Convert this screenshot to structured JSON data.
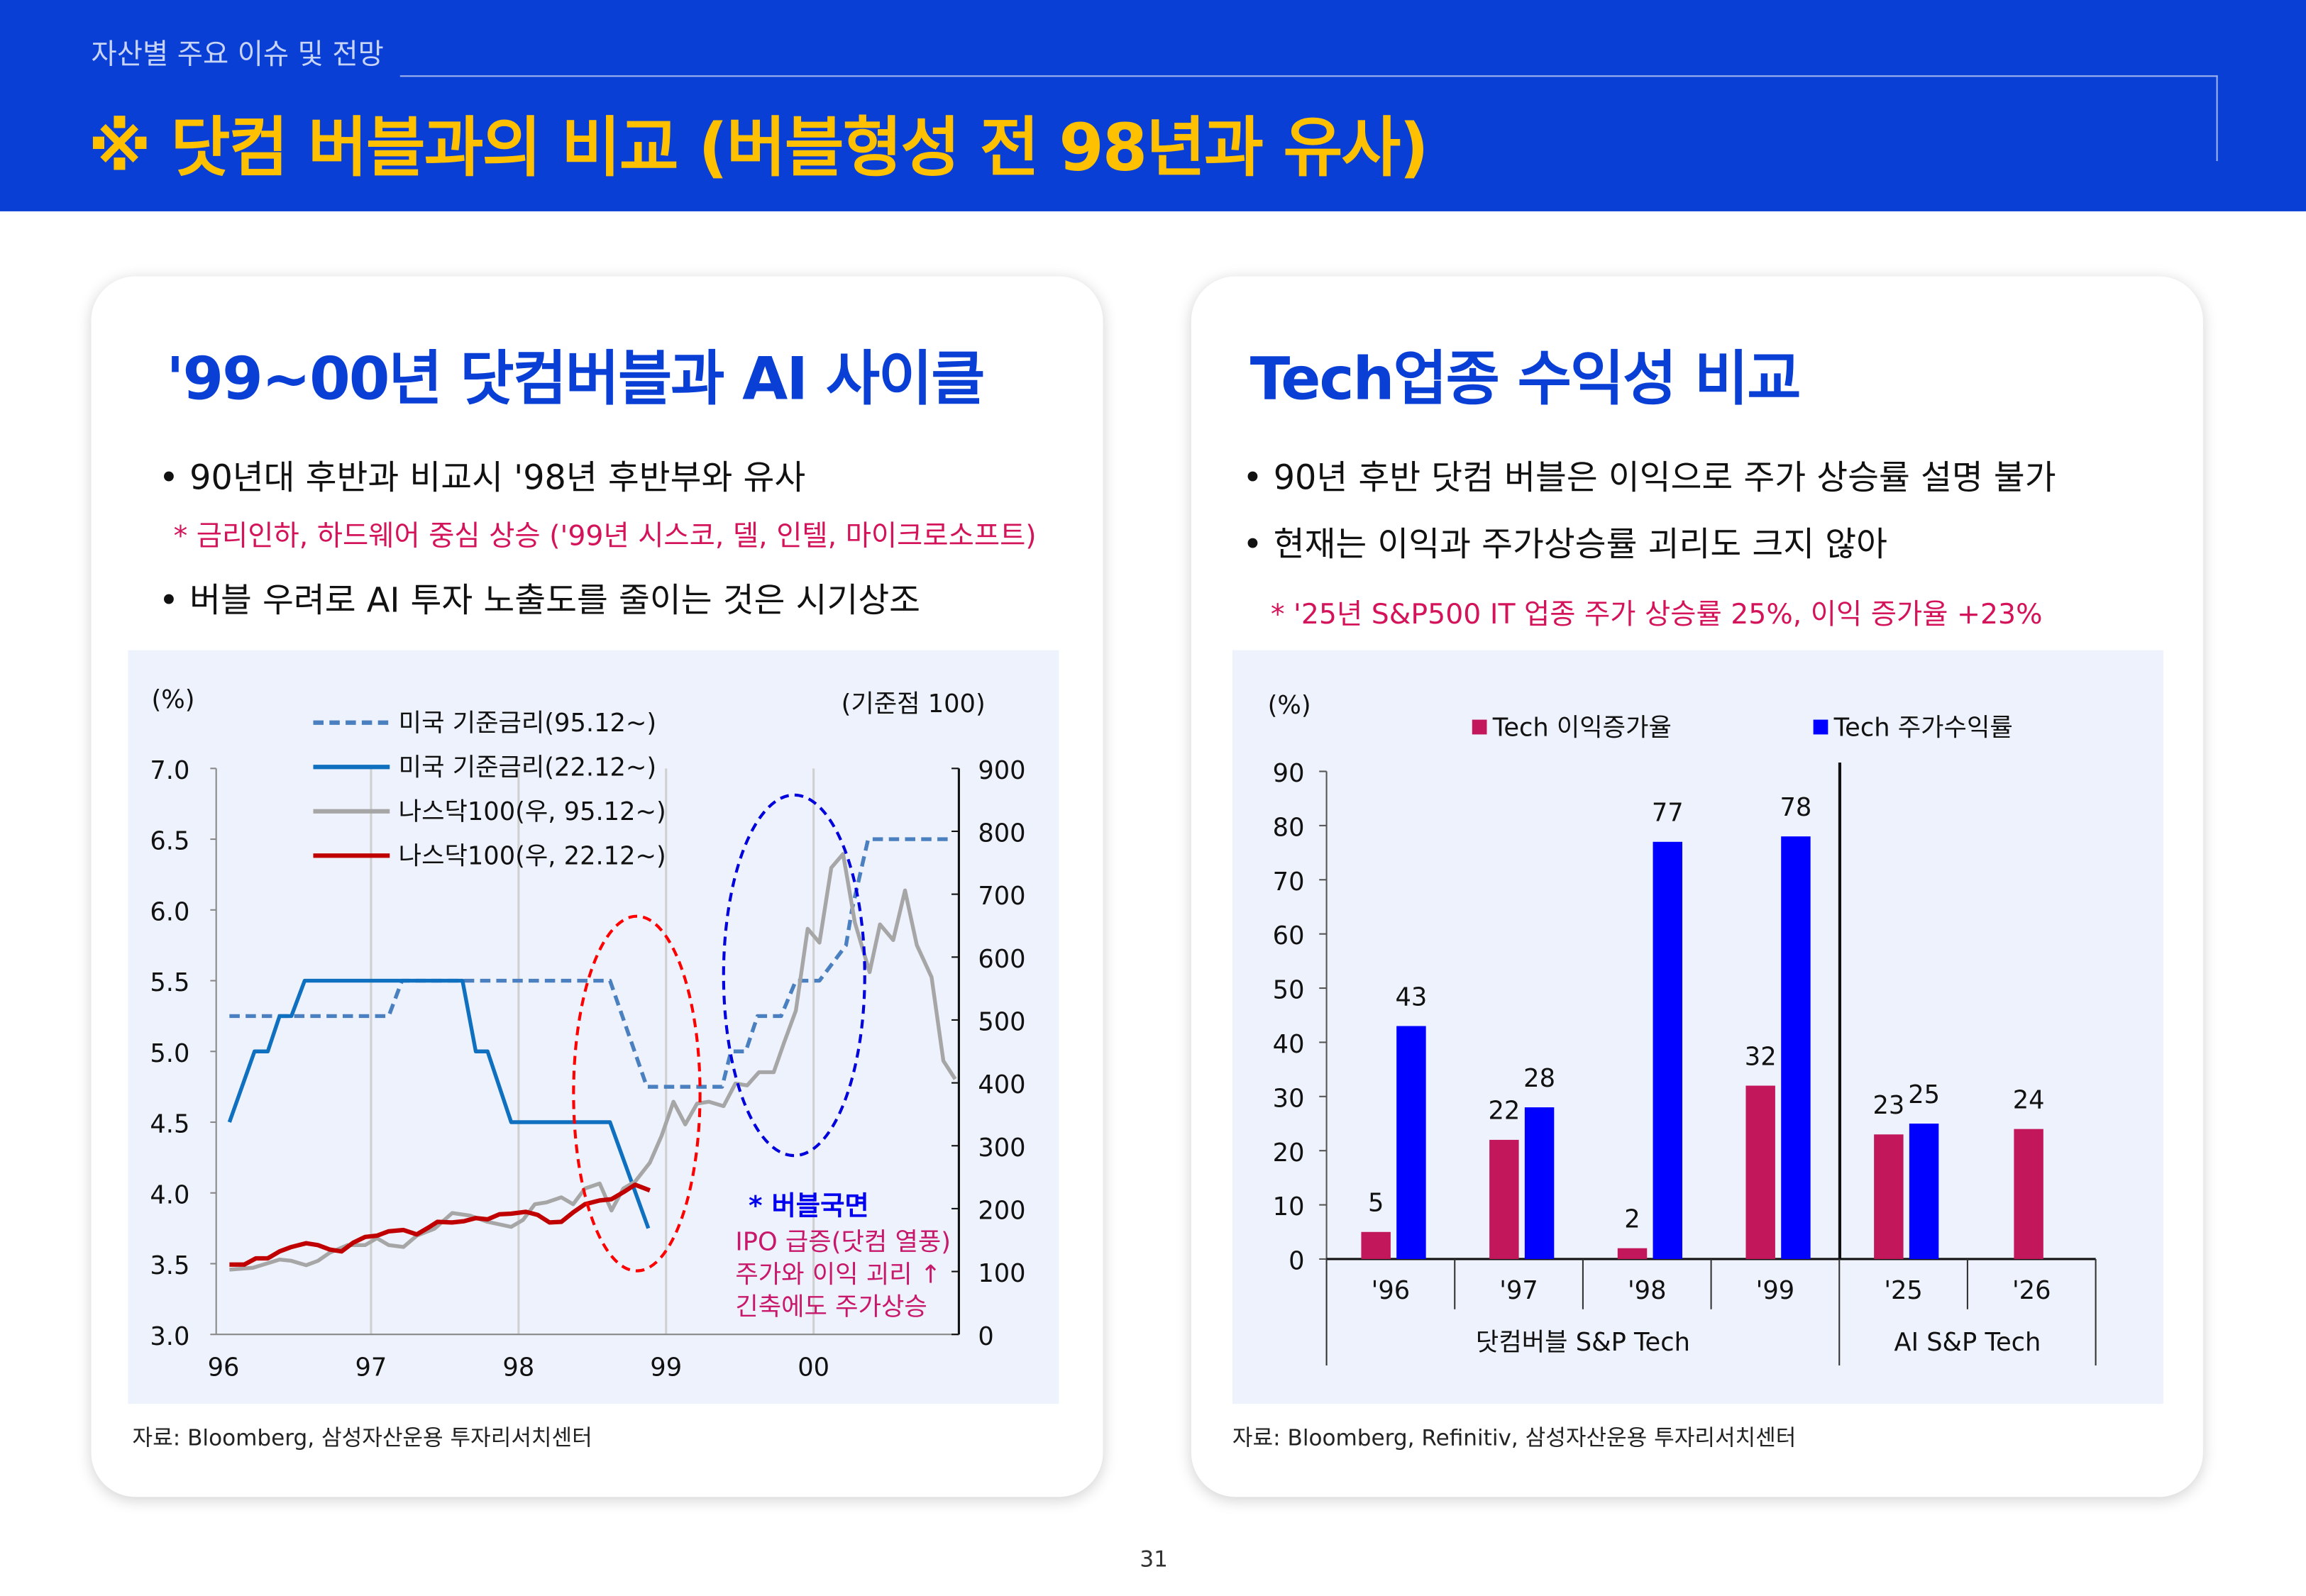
{
  "header": {
    "section": "자산별 주요 이슈 및 전망",
    "title": "※ 닷컴 버블과의 비교 (버블형성 전 98년과 유사)"
  },
  "left": {
    "title": "'99~00년 닷컴버블과 AI 사이클",
    "bullets": [
      "• 90년대 후반과 비교시 '98년 후반부와 유사",
      "• 버블 우려로 AI 투자 노출도를 줄이는 것은 시기상조"
    ],
    "note": "* 금리인하, 하드웨어 중심 상승 ('99년 시스코, 델, 인텔, 마이크로소프트)",
    "source": "자료: Bloomberg, 삼성자산운용 투자리서치센터"
  },
  "right": {
    "title": "Tech업종 수익성 비교",
    "bullets": [
      "• 90년 후반 닷컴 버블은 이익으로 주가 상승률 설명 불가",
      "• 현재는 이익과 주가상승률 괴리도 크지 않아"
    ],
    "note": "* '25년 S&P500  IT 업종 주가 상승률 25%, 이익 증가율 +23%",
    "source": "자료: Bloomberg, Refinitiv, 삼성자산운용 투자리서치센터"
  },
  "page_number": "31",
  "chart_data": [
    {
      "type": "line",
      "ylabel_left": "(%)",
      "ylabel_right": "(기준점 100)",
      "ylim_left": [
        3.0,
        7.0
      ],
      "yticks_left": [
        "3.0",
        "3.5",
        "4.0",
        "4.5",
        "5.0",
        "5.5",
        "6.0",
        "6.5",
        "7.0"
      ],
      "ylim_right": [
        0,
        900
      ],
      "yticks_right": [
        "0",
        "100",
        "200",
        "300",
        "400",
        "500",
        "600",
        "700",
        "800",
        "900"
      ],
      "xticks": [
        "96",
        "97",
        "98",
        "99",
        "00"
      ],
      "xlim": [
        1996,
        2001
      ],
      "grid": "vertical",
      "legend_placement": "top-left",
      "series": [
        {
          "name": "미국 기준금리(95.12~)",
          "axis": "left",
          "style": "dashed",
          "color": "#4a7fc0",
          "x": [
            1996.04,
            1997.12,
            1997.21,
            1998.62,
            1998.87,
            1999.38,
            1999.44,
            1999.54,
            1999.62,
            1999.78,
            1999.88,
            2000.04,
            2000.22,
            2000.26,
            2000.37,
            2000.92
          ],
          "y": [
            5.25,
            5.25,
            5.5,
            5.5,
            4.75,
            4.75,
            5.0,
            5.0,
            5.25,
            5.25,
            5.5,
            5.5,
            5.75,
            6.0,
            6.5,
            6.5
          ]
        },
        {
          "name": "미국 기준금리(22.12~)",
          "axis": "left",
          "style": "solid",
          "color": "#1070c0",
          "x": [
            1996.04,
            1996.21,
            1996.3,
            1996.38,
            1996.46,
            1996.55,
            1997.62,
            1997.71,
            1997.79,
            1997.95,
            1998.62,
            1998.88
          ],
          "y": [
            4.5,
            5.0,
            5.0,
            5.25,
            5.25,
            5.5,
            5.5,
            5.0,
            5.0,
            4.5,
            4.5,
            3.75
          ]
        },
        {
          "name": "나스닥100(우, 95.12~)",
          "axis": "right",
          "style": "solid",
          "color": "#a6a6a6",
          "x": [
            1996.04,
            1996.2,
            1996.38,
            1996.46,
            1996.56,
            1996.64,
            1996.72,
            1996.84,
            1996.96,
            1997.04,
            1997.12,
            1997.22,
            1997.31,
            1997.43,
            1997.55,
            1997.67,
            1997.79,
            1997.95,
            1998.03,
            1998.11,
            1998.19,
            1998.29,
            1998.37,
            1998.45,
            1998.55,
            1998.63,
            1998.71,
            1998.79,
            1998.89,
            1998.97,
            1999.05,
            1999.13,
            1999.21,
            1999.29,
            1999.39,
            1999.47,
            1999.55,
            1999.63,
            1999.73,
            1999.8,
            1999.88,
            1999.96,
            2000.04,
            2000.12,
            2000.2,
            2000.28,
            2000.38,
            2000.45,
            2000.54,
            2000.62,
            2000.7,
            2000.8,
            2000.88,
            2000.96
          ],
          "y": [
            103,
            106,
            119,
            117,
            110,
            117,
            130,
            142,
            142,
            153,
            142,
            139,
            157,
            168,
            193,
            189,
            179,
            171,
            182,
            207,
            210,
            218,
            207,
            232,
            240,
            197,
            232,
            243,
            273,
            316,
            370,
            334,
            367,
            370,
            363,
            399,
            396,
            417,
            417,
            464,
            515,
            645,
            623,
            742,
            764,
            655,
            576,
            652,
            627,
            706,
            619,
            568,
            435,
            406
          ]
        },
        {
          "name": "나스닥100(우, 22.12~)",
          "axis": "right",
          "style": "solid",
          "color": "#c00000",
          "x": [
            1996.04,
            1996.14,
            1996.22,
            1996.3,
            1996.38,
            1996.46,
            1996.56,
            1996.64,
            1996.72,
            1996.8,
            1996.88,
            1996.96,
            1997.04,
            1997.12,
            1997.22,
            1997.31,
            1997.39,
            1997.45,
            1997.55,
            1997.63,
            1997.71,
            1997.79,
            1997.87,
            1997.95,
            1998.05,
            1998.13,
            1998.21,
            1998.29,
            1998.37,
            1998.45,
            1998.55,
            1998.63,
            1998.71,
            1998.79,
            1998.89
          ],
          "y": [
            111,
            111,
            121,
            121,
            132,
            139,
            145,
            142,
            135,
            132,
            146,
            155,
            157,
            164,
            166,
            159,
            170,
            179,
            178,
            180,
            185,
            183,
            191,
            192,
            195,
            190,
            178,
            179,
            194,
            207,
            213,
            215,
            226,
            238,
            229
          ]
        }
      ],
      "annotations": {
        "bubble_title": "* 버블국면",
        "bubble_lines": [
          "IPO 급증(닷컴 열풍)",
          "주가와 이익 괴리 ↑",
          "긴축에도 주가상승"
        ]
      }
    },
    {
      "type": "bar",
      "ylabel": "(%)",
      "ylim": [
        0,
        90
      ],
      "yticks": [
        "0",
        "10",
        "20",
        "30",
        "40",
        "50",
        "60",
        "70",
        "80",
        "90"
      ],
      "categories": [
        "'96",
        "'97",
        "'98",
        "'99",
        "'25",
        "'26"
      ],
      "groups": [
        {
          "label": "닷컴버블 S&P Tech",
          "span": 4
        },
        {
          "label": "AI S&P Tech",
          "span": 2
        }
      ],
      "legend_placement": "top",
      "series": [
        {
          "name": "Tech 이익증가율",
          "color": "#c2185b",
          "values": [
            5,
            22,
            2,
            32,
            23,
            24
          ],
          "labels": [
            "5",
            "22",
            "2",
            "32",
            "23",
            "24"
          ]
        },
        {
          "name": "Tech 주가수익률",
          "color": "#0000ff",
          "values": [
            43,
            28,
            77,
            78,
            25,
            null
          ],
          "labels": [
            "43",
            "28",
            "77",
            "78",
            "25",
            ""
          ]
        }
      ]
    }
  ]
}
